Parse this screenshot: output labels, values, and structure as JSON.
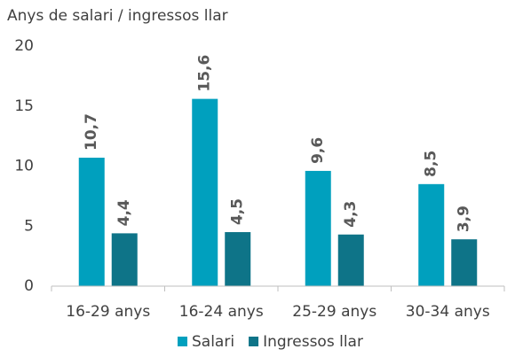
{
  "chart_data": {
    "type": "bar",
    "ylabel": "Anys de salari / ingressos llar",
    "categories": [
      "16-29 anys",
      "16-24 anys",
      "25-29 anys",
      "30-34 anys"
    ],
    "series": [
      {
        "name": "Salari",
        "color": "#00a0be",
        "values": [
          10.7,
          15.6,
          9.6,
          8.5
        ],
        "value_labels": [
          "10,7",
          "15,6",
          "9,6",
          "8,5"
        ]
      },
      {
        "name": "Ingressos llar",
        "color": "#0e7488",
        "values": [
          4.4,
          4.5,
          4.3,
          3.9
        ],
        "value_labels": [
          "4,4",
          "4,5",
          "4,3",
          "3,9"
        ]
      }
    ],
    "ylim": [
      0,
      20
    ],
    "yticks": [
      0,
      5,
      10,
      15,
      20
    ],
    "grid": false,
    "legend": "bottom"
  }
}
